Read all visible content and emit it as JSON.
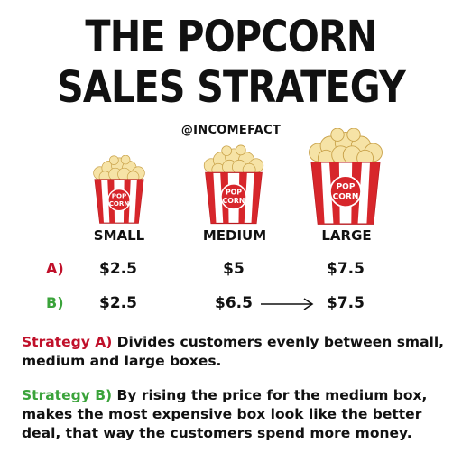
{
  "title": {
    "line1": "THE POPCORN",
    "line2": "SALES STRATEGY"
  },
  "handle": "@INCOMEFACT",
  "sizes": [
    "SMALL",
    "MEDIUM",
    "LARGE"
  ],
  "box_label_lines": [
    "POP",
    "CORN"
  ],
  "rows": {
    "a": {
      "label": "A)",
      "prices": [
        "$2.5",
        "$5",
        "$7.5"
      ]
    },
    "b": {
      "label": "B)",
      "prices": [
        "$2.5",
        "$6.5",
        "$7.5"
      ]
    }
  },
  "strategy_a": {
    "label": "Strategy A)",
    "text": " Divides customers evenly between small, medium and large boxes."
  },
  "strategy_b": {
    "label": "Strategy B)",
    "text": " By rising the price for the medium box, makes the most expensive box look like the better deal, that way the customers spend more money."
  },
  "colors": {
    "strategy_a": "#c0102a",
    "strategy_b": "#3aa33a",
    "box_red": "#d7262b"
  },
  "icons": [
    "popcorn-box-icon",
    "arrow-right-icon"
  ]
}
